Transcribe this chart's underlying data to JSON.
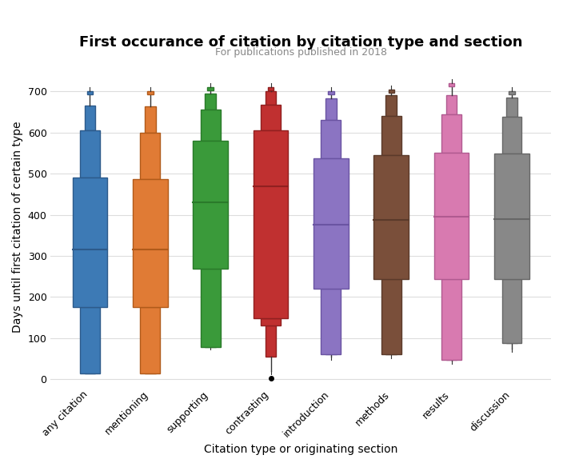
{
  "title": "First occurance of citation by citation type and section",
  "subtitle": "For publications published in 2018",
  "xlabel": "Citation type or originating section",
  "ylabel": "Days until first citation of certain type",
  "categories": [
    "any citation",
    "mentioning",
    "supporting",
    "contrasting",
    "introduction",
    "methods",
    "results",
    "discussion"
  ],
  "colors": [
    "#3d7ab5",
    "#e07b35",
    "#3a9a3a",
    "#c03030",
    "#8b74c2",
    "#7a4f3a",
    "#d87ab0",
    "#888888"
  ],
  "edge_colors": [
    "#2d5a8a",
    "#b05a1a",
    "#2a7a2a",
    "#902020",
    "#6a54a2",
    "#5a3a2a",
    "#b05a90",
    "#666666"
  ],
  "box_data": [
    {
      "whislo": 15,
      "q1": 175,
      "med": 315,
      "q3": 490,
      "whishi": 605,
      "level2_lo": 95,
      "level2_hi": 665,
      "level3_lo": 55,
      "level3_hi": 700,
      "fliers": []
    },
    {
      "whislo": 15,
      "q1": 175,
      "med": 315,
      "q3": 487,
      "whishi": 600,
      "level2_lo": 90,
      "level2_hi": 663,
      "level3_lo": 50,
      "level3_hi": 700,
      "fliers": []
    },
    {
      "whislo": 78,
      "q1": 268,
      "med": 430,
      "q3": 580,
      "whishi": 655,
      "level2_lo": 108,
      "level2_hi": 695,
      "level3_lo": 80,
      "level3_hi": 710,
      "fliers": []
    },
    {
      "whislo": 130,
      "q1": 148,
      "med": 470,
      "q3": 605,
      "whishi": 668,
      "level2_lo": 55,
      "level2_hi": 700,
      "level3_lo": 20,
      "level3_hi": 710,
      "fliers": [
        3
      ]
    },
    {
      "whislo": 60,
      "q1": 220,
      "med": 375,
      "q3": 537,
      "whishi": 630,
      "level2_lo": 85,
      "level2_hi": 683,
      "level3_lo": 55,
      "level3_hi": 700,
      "fliers": []
    },
    {
      "whislo": 60,
      "q1": 243,
      "med": 388,
      "q3": 545,
      "whishi": 640,
      "level2_lo": 90,
      "level2_hi": 690,
      "level3_lo": 60,
      "level3_hi": 705,
      "fliers": []
    },
    {
      "whislo": 48,
      "q1": 243,
      "med": 395,
      "q3": 550,
      "whishi": 645,
      "level2_lo": 75,
      "level2_hi": 690,
      "level3_lo": 45,
      "level3_hi": 720,
      "fliers": []
    },
    {
      "whislo": 88,
      "q1": 243,
      "med": 390,
      "q3": 548,
      "whishi": 638,
      "level2_lo": 105,
      "level2_hi": 685,
      "level3_lo": 75,
      "level3_hi": 700,
      "fliers": []
    }
  ],
  "ylim": [
    -15,
    755
  ],
  "yticks": [
    0,
    100,
    200,
    300,
    400,
    500,
    600,
    700
  ],
  "background_color": "#ffffff",
  "grid_color": "#dddddd",
  "title_fontsize": 13,
  "subtitle_fontsize": 9,
  "label_fontsize": 9
}
